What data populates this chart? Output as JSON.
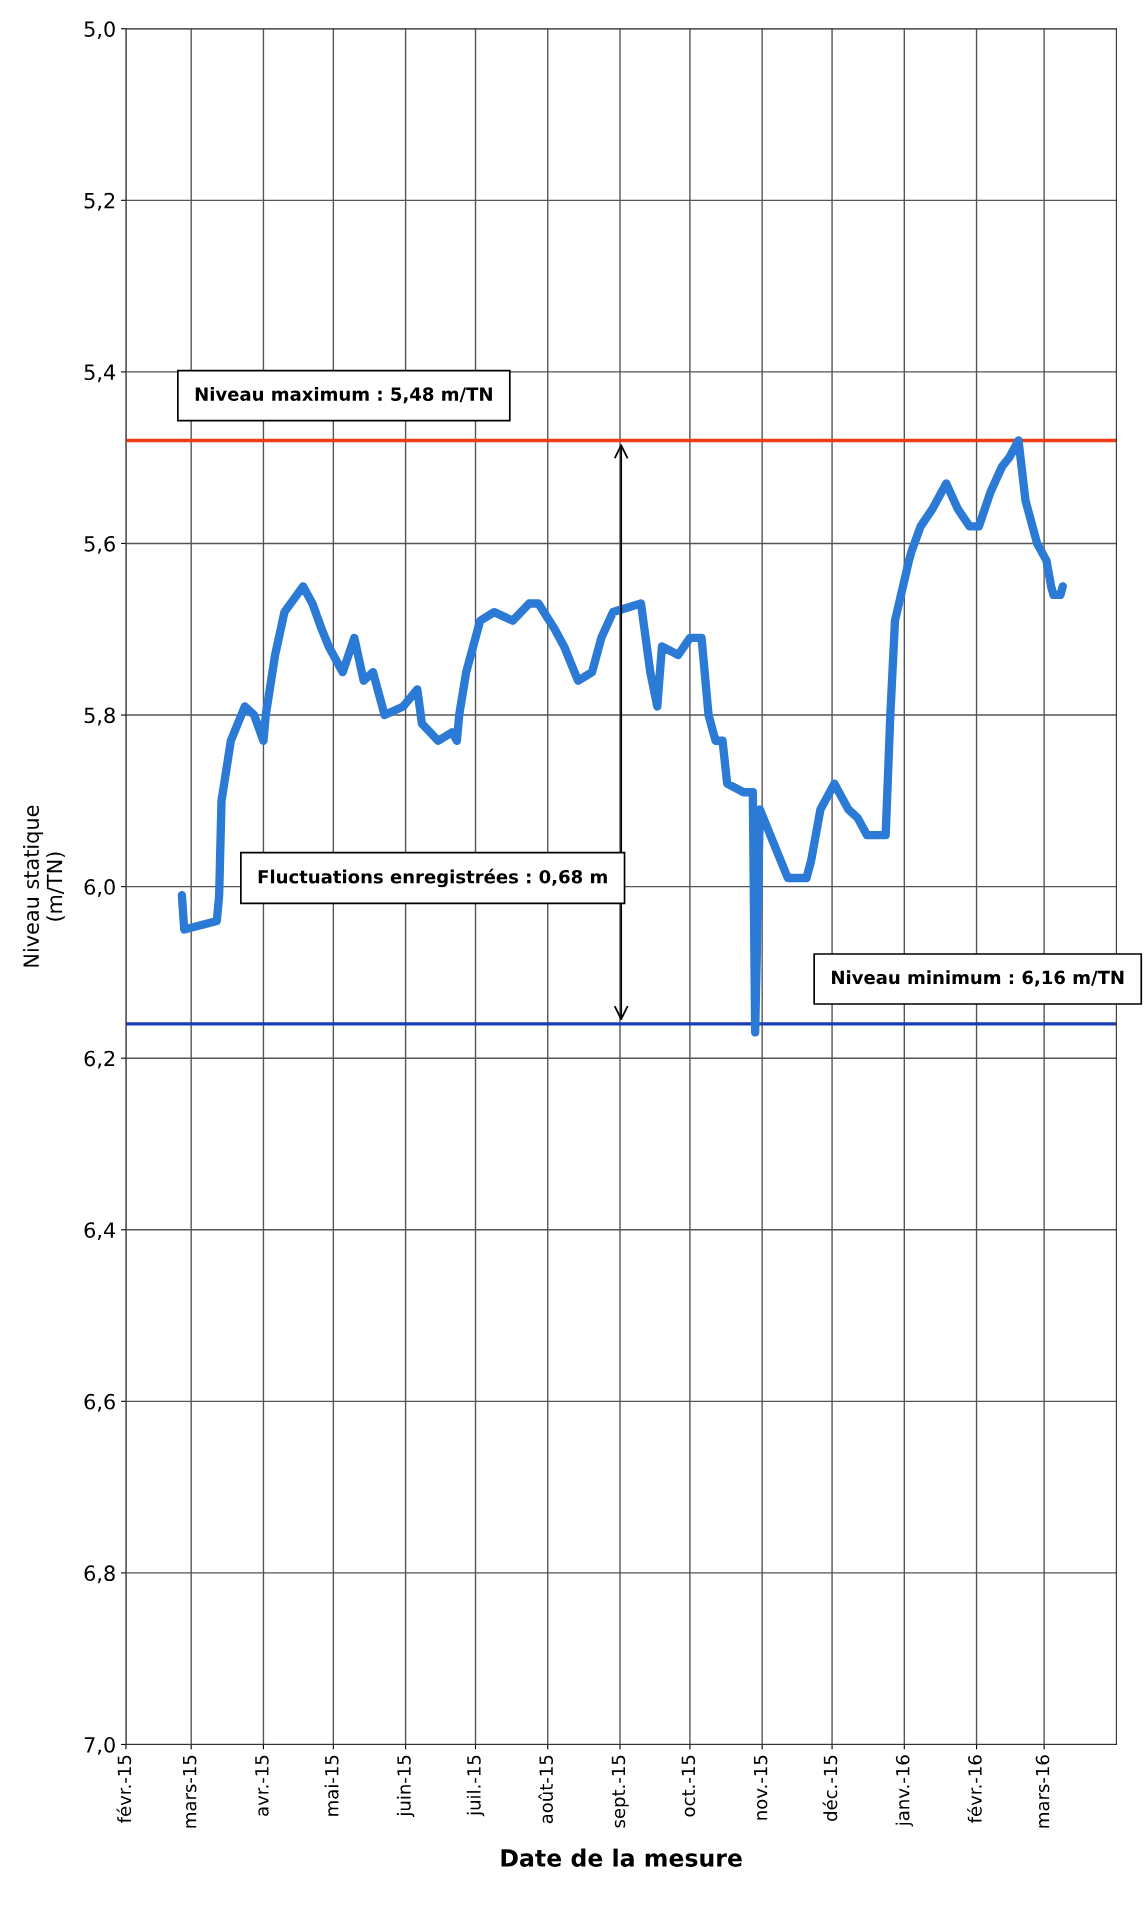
{
  "chart_data": {
    "type": "line",
    "xlabel": "Date de la mesure",
    "ylabel": "Niveau statique\n(m/TN)",
    "x": [
      "2015-02-25",
      "2015-02-26",
      "2015-03-12",
      "2015-03-13",
      "2015-03-14",
      "2015-03-18",
      "2015-03-24",
      "2015-03-28",
      "2015-04-01",
      "2015-04-02",
      "2015-04-06",
      "2015-04-10",
      "2015-04-18",
      "2015-04-22",
      "2015-04-26",
      "2015-04-29",
      "2015-05-05",
      "2015-05-10",
      "2015-05-14",
      "2015-05-18",
      "2015-05-23",
      "2015-05-31",
      "2015-06-06",
      "2015-06-08",
      "2015-06-15",
      "2015-06-21",
      "2015-06-23",
      "2015-06-24",
      "2015-06-27",
      "2015-07-03",
      "2015-07-09",
      "2015-07-17",
      "2015-07-24",
      "2015-07-28",
      "2015-08-04",
      "2015-08-08",
      "2015-08-14",
      "2015-08-20",
      "2015-08-24",
      "2015-08-29",
      "2015-09-10",
      "2015-09-14",
      "2015-09-17",
      "2015-09-19",
      "2015-09-26",
      "2015-10-01",
      "2015-10-06",
      "2015-10-09",
      "2015-10-12",
      "2015-10-15",
      "2015-10-17",
      "2015-10-24",
      "2015-10-28",
      "2015-10-29",
      "2015-10-31",
      "2015-11-12",
      "2015-11-20",
      "2015-11-22",
      "2015-11-26",
      "2015-12-02",
      "2015-12-08",
      "2015-12-12",
      "2015-12-16",
      "2015-12-23",
      "2015-12-24",
      "2015-12-26",
      "2015-12-28",
      "2016-01-03",
      "2016-01-04",
      "2016-01-08",
      "2016-01-13",
      "2016-01-19",
      "2016-01-24",
      "2016-01-29",
      "2016-02-02",
      "2016-02-07",
      "2016-02-12",
      "2016-02-15",
      "2016-02-19",
      "2016-02-22",
      "2016-02-27",
      "2016-03-02",
      "2016-03-04",
      "2016-03-05",
      "2016-03-08",
      "2016-03-09"
    ],
    "series": [
      {
        "color": "#2a7ad6",
        "values": [
          6.01,
          6.05,
          6.04,
          6.01,
          5.9,
          5.83,
          5.79,
          5.8,
          5.83,
          5.8,
          5.73,
          5.68,
          5.65,
          5.67,
          5.7,
          5.72,
          5.75,
          5.71,
          5.76,
          5.75,
          5.8,
          5.79,
          5.77,
          5.81,
          5.83,
          5.82,
          5.83,
          5.8,
          5.75,
          5.69,
          5.68,
          5.69,
          5.67,
          5.67,
          5.7,
          5.72,
          5.76,
          5.75,
          5.71,
          5.68,
          5.67,
          5.75,
          5.79,
          5.72,
          5.73,
          5.71,
          5.71,
          5.8,
          5.83,
          5.83,
          5.88,
          5.89,
          5.89,
          6.17,
          5.91,
          5.99,
          5.99,
          5.97,
          5.91,
          5.88,
          5.91,
          5.92,
          5.94,
          5.94,
          5.94,
          5.8,
          5.69,
          5.62,
          5.61,
          5.58,
          5.56,
          5.53,
          5.56,
          5.58,
          5.58,
          5.54,
          5.51,
          5.5,
          5.48,
          5.55,
          5.6,
          5.62,
          5.65,
          5.66,
          5.66,
          5.65
        ]
      }
    ],
    "xlim": [
      "2015-02-01",
      "2016-04-01"
    ],
    "ylim": [
      7.0,
      5.0
    ],
    "xticks": [
      {
        "value": "2015-02-01",
        "label": "févr.-15"
      },
      {
        "value": "2015-03-01",
        "label": "mars-15"
      },
      {
        "value": "2015-04-01",
        "label": "avr.-15"
      },
      {
        "value": "2015-05-01",
        "label": "mai-15"
      },
      {
        "value": "2015-06-01",
        "label": "juin-15"
      },
      {
        "value": "2015-07-01",
        "label": "juil.-15"
      },
      {
        "value": "2015-08-01",
        "label": "août-15"
      },
      {
        "value": "2015-09-01",
        "label": "sept.-15"
      },
      {
        "value": "2015-10-01",
        "label": "oct.-15"
      },
      {
        "value": "2015-11-01",
        "label": "nov.-15"
      },
      {
        "value": "2015-12-01",
        "label": "déc.-15"
      },
      {
        "value": "2016-01-01",
        "label": "janv.-16"
      },
      {
        "value": "2016-02-01",
        "label": "févr.-16"
      },
      {
        "value": "2016-03-01",
        "label": "mars-16"
      }
    ],
    "yticks": [
      {
        "value": 5.0,
        "label": "5,0"
      },
      {
        "value": 5.2,
        "label": "5,2"
      },
      {
        "value": 5.4,
        "label": "5,4"
      },
      {
        "value": 5.6,
        "label": "5,6"
      },
      {
        "value": 5.8,
        "label": "5,8"
      },
      {
        "value": 6.0,
        "label": "6,0"
      },
      {
        "value": 6.2,
        "label": "6,2"
      },
      {
        "value": 6.4,
        "label": "6,4"
      },
      {
        "value": 6.6,
        "label": "6,6"
      },
      {
        "value": 6.8,
        "label": "6,8"
      },
      {
        "value": 7.0,
        "label": "7,0"
      }
    ],
    "grid": true,
    "ref_lines": [
      {
        "axis": "y",
        "value": 5.48,
        "label": "Niveau maximum : 5,48 m/TN",
        "color": "#f03a17"
      },
      {
        "axis": "y",
        "value": 6.16,
        "label": "Niveau minimum : 6,16 m/TN",
        "color": "#1a3cb4"
      }
    ],
    "annotations": [
      "Fluctuations enregistrées : 0,68 m"
    ]
  }
}
